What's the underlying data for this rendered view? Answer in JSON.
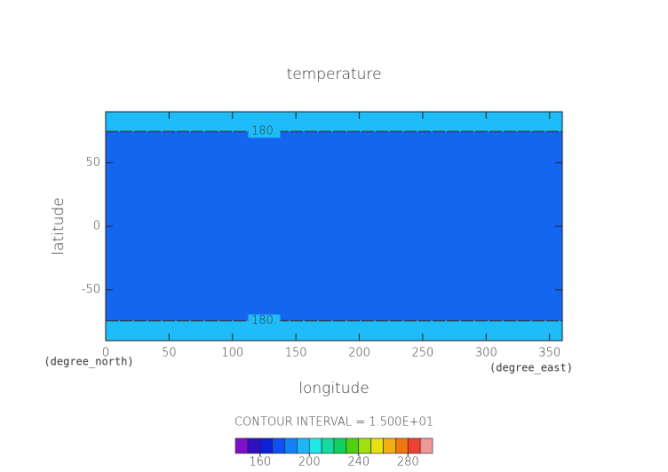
{
  "chart_data": {
    "type": "contour",
    "title": "temperature",
    "x_label": "longitude",
    "y_label": "latitude",
    "x_unit": "(degree_east)",
    "y_unit": "(degree_north)",
    "xlim": [
      0,
      360
    ],
    "xticks": [
      0,
      50,
      100,
      150,
      200,
      250,
      300,
      350
    ],
    "ylim": [
      -90,
      90
    ],
    "yticks": [
      -50,
      0,
      50
    ],
    "background_color": "#1466f0",
    "fill_bands": [
      {
        "ylim": [
          74.5,
          90
        ],
        "color": "#1ebcf8"
      },
      {
        "ylim": [
          -90,
          -74.3
        ],
        "color": "#1ebcf8"
      }
    ],
    "contours": [
      {
        "value": 180,
        "label": "180.",
        "lat": 74.5,
        "label_lon": 125
      },
      {
        "value": 180,
        "label": "180.",
        "lat": -74.3,
        "label_lon": 125
      }
    ],
    "contour_interval": "CONTOUR INTERVAL = 1.500E+01",
    "colorbar": {
      "edges": [
        140,
        150,
        160,
        170,
        180,
        190,
        200,
        210,
        220,
        230,
        240,
        250,
        260,
        270,
        280,
        290,
        300
      ],
      "colors": [
        "#8010c8",
        "#3010c0",
        "#1020d8",
        "#1050f0",
        "#1480f8",
        "#1eb4f8",
        "#20e8e8",
        "#18d8a0",
        "#10d060",
        "#50d010",
        "#a0e010",
        "#e8e010",
        "#f0b010",
        "#f07810",
        "#f04030",
        "#f09898"
      ],
      "ticks": [
        160,
        200,
        240,
        280
      ]
    }
  }
}
